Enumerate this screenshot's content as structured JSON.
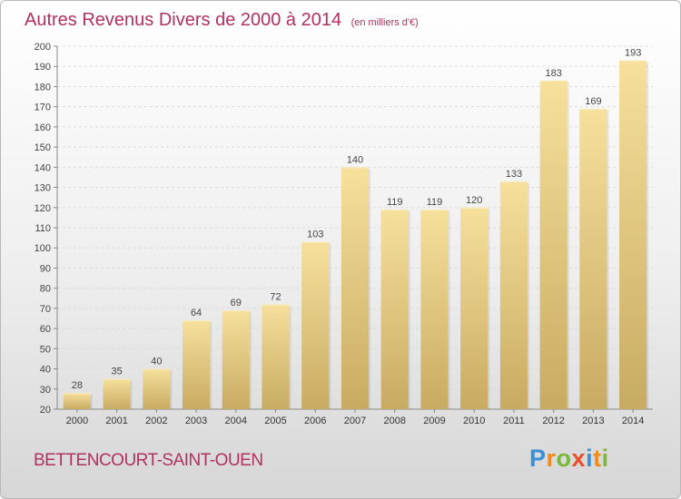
{
  "title": "Autres Revenus Divers de 2000 à 2014",
  "subtitle": "(en milliers d'€)",
  "commune": "BETTENCOURT-SAINT-OUEN",
  "logo": {
    "letters": [
      "P",
      "r",
      "o",
      "x",
      "i",
      "t",
      "i"
    ],
    "colors": [
      "#3a8fd8",
      "#f08c1e",
      "#7ab83a",
      "#e84e2a",
      "#3a8fd8",
      "#f08c1e",
      "#7ab83a"
    ]
  },
  "chart_data": {
    "type": "bar",
    "categories": [
      "2000",
      "2001",
      "2002",
      "2003",
      "2004",
      "2005",
      "2006",
      "2007",
      "2008",
      "2009",
      "2010",
      "2011",
      "2012",
      "2013",
      "2014"
    ],
    "values": [
      28,
      35,
      40,
      64,
      69,
      72,
      103,
      140,
      119,
      119,
      120,
      133,
      183,
      169,
      193
    ],
    "ylim": [
      20,
      200
    ],
    "yticks": [
      20,
      30,
      40,
      50,
      60,
      70,
      80,
      90,
      100,
      110,
      120,
      130,
      140,
      150,
      160,
      170,
      180,
      190,
      200
    ],
    "grid": true,
    "bar_color": "#e8cf86"
  }
}
